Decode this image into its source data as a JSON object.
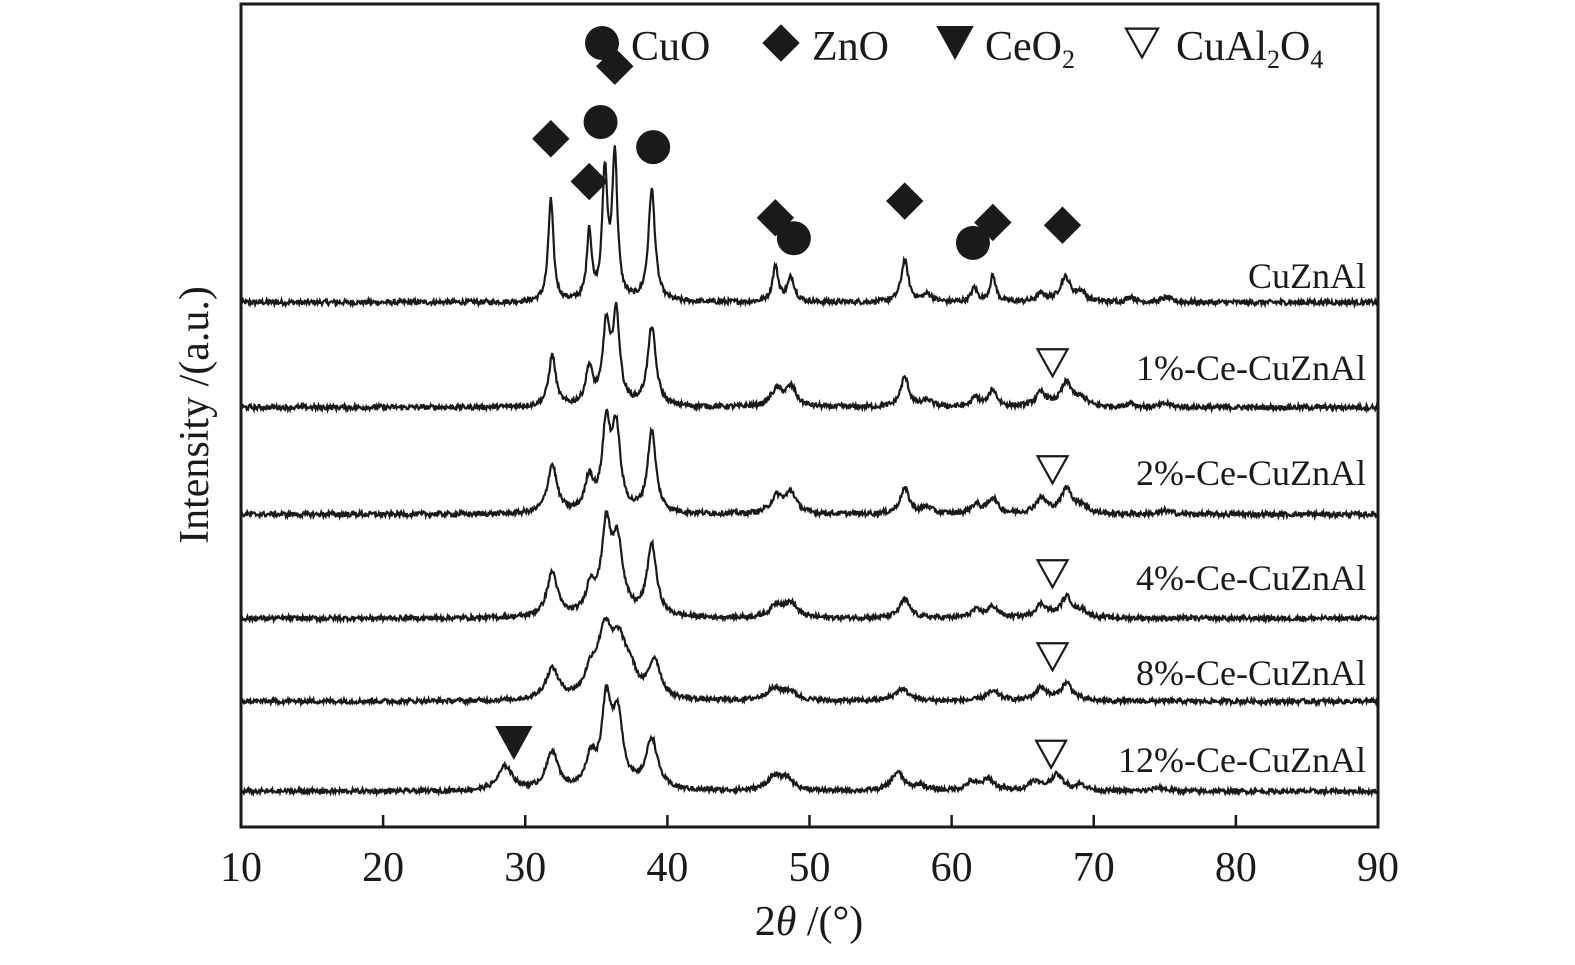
{
  "chart_data": {
    "type": "line",
    "xlabel_prefix": "2",
    "xlabel_var": "θ",
    "xlabel_suffix": " /(°)",
    "ylabel": "Intensity /(a.u.)",
    "xlim": [
      10,
      90
    ],
    "x_ticks": [
      10,
      20,
      30,
      40,
      50,
      60,
      70,
      80,
      90
    ],
    "y_ticks_shown": false,
    "grid": false,
    "legend_position": "top-right",
    "colors": {
      "line": "#1a1a1a",
      "marker": "#1a1a1a",
      "axis": "#1a1a1a",
      "background": "#ffffff"
    },
    "legend": [
      {
        "symbol": "circle",
        "label": "CuO"
      },
      {
        "symbol": "diamond",
        "label": "ZnO"
      },
      {
        "symbol": "triangle-down-filled",
        "label": "CeO",
        "sub": "2",
        "label_after": ""
      },
      {
        "symbol": "triangle-down-open",
        "label": "CuAl",
        "sub": "2",
        "label_after": "O",
        "sub2": "4"
      }
    ],
    "series": [
      {
        "name": "CuZnAl",
        "baseline": 0.6,
        "noise": 0.55,
        "peaks": [
          {
            "x": 31.8,
            "h": 11.0,
            "w": 0.22
          },
          {
            "x": 34.5,
            "h": 7.5,
            "w": 0.2
          },
          {
            "x": 35.6,
            "h": 13.5,
            "w": 0.22
          },
          {
            "x": 36.3,
            "h": 15.5,
            "w": 0.22
          },
          {
            "x": 38.9,
            "h": 12.0,
            "w": 0.28
          },
          {
            "x": 47.6,
            "h": 3.8,
            "w": 0.25
          },
          {
            "x": 48.7,
            "h": 2.6,
            "w": 0.3
          },
          {
            "x": 56.7,
            "h": 4.5,
            "w": 0.3
          },
          {
            "x": 58.3,
            "h": 0.8,
            "w": 0.4
          },
          {
            "x": 61.6,
            "h": 1.5,
            "w": 0.25
          },
          {
            "x": 62.9,
            "h": 2.8,
            "w": 0.25
          },
          {
            "x": 66.3,
            "h": 0.8,
            "w": 0.4
          },
          {
            "x": 68.0,
            "h": 2.6,
            "w": 0.45
          },
          {
            "x": 69.1,
            "h": 1.0,
            "w": 0.4
          },
          {
            "x": 72.6,
            "h": 0.6,
            "w": 0.3
          },
          {
            "x": 75.1,
            "h": 0.5,
            "w": 0.4
          }
        ],
        "markers": [
          {
            "symbol": "diamond",
            "x": 31.8,
            "y": 18.2
          },
          {
            "symbol": "diamond",
            "x": 34.5,
            "y": 13.6
          },
          {
            "symbol": "circle",
            "x": 35.3,
            "y": 20.0
          },
          {
            "symbol": "diamond",
            "x": 36.3,
            "y": 26.0
          },
          {
            "symbol": "circle",
            "x": 39.0,
            "y": 17.3
          },
          {
            "symbol": "diamond",
            "x": 47.6,
            "y": 9.7
          },
          {
            "symbol": "circle",
            "x": 48.9,
            "y": 7.5
          },
          {
            "symbol": "diamond",
            "x": 56.7,
            "y": 11.5
          },
          {
            "symbol": "circle",
            "x": 61.5,
            "y": 7.0
          },
          {
            "symbol": "diamond",
            "x": 62.9,
            "y": 9.2
          },
          {
            "symbol": "diamond",
            "x": 67.8,
            "y": 8.9
          }
        ]
      },
      {
        "name": "1%-Ce-CuZnAl",
        "baseline": 0.6,
        "noise": 0.55,
        "peaks": [
          {
            "x": 31.9,
            "h": 5.5,
            "w": 0.3
          },
          {
            "x": 34.5,
            "h": 4.0,
            "w": 0.3
          },
          {
            "x": 35.7,
            "h": 8.2,
            "w": 0.3
          },
          {
            "x": 36.4,
            "h": 9.5,
            "w": 0.3
          },
          {
            "x": 38.9,
            "h": 8.5,
            "w": 0.35
          },
          {
            "x": 47.7,
            "h": 1.8,
            "w": 0.5
          },
          {
            "x": 48.7,
            "h": 2.0,
            "w": 0.45
          },
          {
            "x": 56.7,
            "h": 3.2,
            "w": 0.35
          },
          {
            "x": 58.3,
            "h": 0.7,
            "w": 0.4
          },
          {
            "x": 61.7,
            "h": 1.0,
            "w": 0.35
          },
          {
            "x": 62.9,
            "h": 1.8,
            "w": 0.35
          },
          {
            "x": 66.3,
            "h": 1.5,
            "w": 0.45
          },
          {
            "x": 68.1,
            "h": 2.6,
            "w": 0.5
          },
          {
            "x": 69.2,
            "h": 0.8,
            "w": 0.4
          },
          {
            "x": 72.6,
            "h": 0.5,
            "w": 0.3
          },
          {
            "x": 75.1,
            "h": 0.4,
            "w": 0.4
          }
        ],
        "markers": [
          {
            "symbol": "triangle-down-open",
            "x": 67.1,
            "y": 5.4
          }
        ]
      },
      {
        "name": "2%-Ce-CuZnAl",
        "baseline": 0.6,
        "noise": 0.55,
        "peaks": [
          {
            "x": 31.9,
            "h": 5.2,
            "w": 0.4
          },
          {
            "x": 34.5,
            "h": 3.6,
            "w": 0.35
          },
          {
            "x": 35.7,
            "h": 9.0,
            "w": 0.35
          },
          {
            "x": 36.4,
            "h": 8.5,
            "w": 0.35
          },
          {
            "x": 38.9,
            "h": 8.8,
            "w": 0.35
          },
          {
            "x": 47.7,
            "h": 1.8,
            "w": 0.5
          },
          {
            "x": 48.7,
            "h": 2.2,
            "w": 0.45
          },
          {
            "x": 56.7,
            "h": 2.7,
            "w": 0.4
          },
          {
            "x": 58.3,
            "h": 0.7,
            "w": 0.4
          },
          {
            "x": 61.7,
            "h": 1.0,
            "w": 0.4
          },
          {
            "x": 62.9,
            "h": 1.7,
            "w": 0.4
          },
          {
            "x": 66.3,
            "h": 1.6,
            "w": 0.5
          },
          {
            "x": 68.1,
            "h": 2.7,
            "w": 0.5
          },
          {
            "x": 69.2,
            "h": 0.8,
            "w": 0.4
          },
          {
            "x": 75.1,
            "h": 0.4,
            "w": 0.4
          }
        ],
        "markers": [
          {
            "symbol": "triangle-down-open",
            "x": 67.1,
            "y": 5.4
          }
        ]
      },
      {
        "name": "4%-Ce-CuZnAl",
        "baseline": 0.6,
        "noise": 0.5,
        "peaks": [
          {
            "x": 31.9,
            "h": 4.8,
            "w": 0.45
          },
          {
            "x": 34.6,
            "h": 3.0,
            "w": 0.4
          },
          {
            "x": 35.7,
            "h": 9.0,
            "w": 0.4
          },
          {
            "x": 36.5,
            "h": 7.5,
            "w": 0.45
          },
          {
            "x": 38.9,
            "h": 7.7,
            "w": 0.4
          },
          {
            "x": 47.7,
            "h": 1.4,
            "w": 0.55
          },
          {
            "x": 48.7,
            "h": 1.5,
            "w": 0.5
          },
          {
            "x": 56.7,
            "h": 2.0,
            "w": 0.45
          },
          {
            "x": 61.7,
            "h": 0.8,
            "w": 0.45
          },
          {
            "x": 62.9,
            "h": 1.2,
            "w": 0.45
          },
          {
            "x": 66.3,
            "h": 1.4,
            "w": 0.5
          },
          {
            "x": 68.1,
            "h": 2.2,
            "w": 0.5
          },
          {
            "x": 69.2,
            "h": 0.7,
            "w": 0.4
          }
        ],
        "markers": [
          {
            "symbol": "triangle-down-open",
            "x": 67.1,
            "y": 5.4
          }
        ]
      },
      {
        "name": "8%-Ce-CuZnAl",
        "baseline": 0.6,
        "noise": 0.5,
        "peaks": [
          {
            "x": 31.9,
            "h": 3.3,
            "w": 0.55
          },
          {
            "x": 34.6,
            "h": 2.4,
            "w": 0.5
          },
          {
            "x": 35.6,
            "h": 6.8,
            "w": 0.6
          },
          {
            "x": 36.6,
            "h": 5.2,
            "w": 0.6
          },
          {
            "x": 37.4,
            "h": 2.2,
            "w": 0.5
          },
          {
            "x": 39.1,
            "h": 4.1,
            "w": 0.5
          },
          {
            "x": 47.5,
            "h": 1.2,
            "w": 0.7
          },
          {
            "x": 48.6,
            "h": 0.9,
            "w": 0.6
          },
          {
            "x": 56.5,
            "h": 1.3,
            "w": 0.6
          },
          {
            "x": 62.9,
            "h": 1.0,
            "w": 0.6
          },
          {
            "x": 66.3,
            "h": 1.4,
            "w": 0.5
          },
          {
            "x": 68.1,
            "h": 1.9,
            "w": 0.5
          }
        ],
        "markers": [
          {
            "symbol": "triangle-down-open",
            "x": 67.1,
            "y": 5.4
          }
        ]
      },
      {
        "name": "12%-Ce-CuZnAl",
        "baseline": 0.6,
        "noise": 0.5,
        "peaks": [
          {
            "x": 28.6,
            "h": 2.6,
            "w": 0.6
          },
          {
            "x": 31.9,
            "h": 4.1,
            "w": 0.5
          },
          {
            "x": 34.6,
            "h": 3.2,
            "w": 0.4
          },
          {
            "x": 35.7,
            "h": 8.8,
            "w": 0.4
          },
          {
            "x": 36.5,
            "h": 7.6,
            "w": 0.45
          },
          {
            "x": 38.9,
            "h": 5.4,
            "w": 0.5
          },
          {
            "x": 47.5,
            "h": 1.4,
            "w": 0.6
          },
          {
            "x": 48.4,
            "h": 1.2,
            "w": 0.55
          },
          {
            "x": 56.2,
            "h": 2.0,
            "w": 0.5
          },
          {
            "x": 57.8,
            "h": 0.6,
            "w": 0.5
          },
          {
            "x": 61.4,
            "h": 0.9,
            "w": 0.5
          },
          {
            "x": 62.6,
            "h": 1.2,
            "w": 0.5
          },
          {
            "x": 65.8,
            "h": 1.0,
            "w": 0.5
          },
          {
            "x": 67.4,
            "h": 1.7,
            "w": 0.55
          },
          {
            "x": 69.1,
            "h": 0.6,
            "w": 0.5
          },
          {
            "x": 74.6,
            "h": 0.4,
            "w": 0.5
          }
        ],
        "markers": [
          {
            "symbol": "triangle-down-filled",
            "x": 29.2,
            "y": 5.8
          },
          {
            "symbol": "triangle-down-open",
            "x": 67.0,
            "y": 4.6
          }
        ]
      }
    ]
  }
}
